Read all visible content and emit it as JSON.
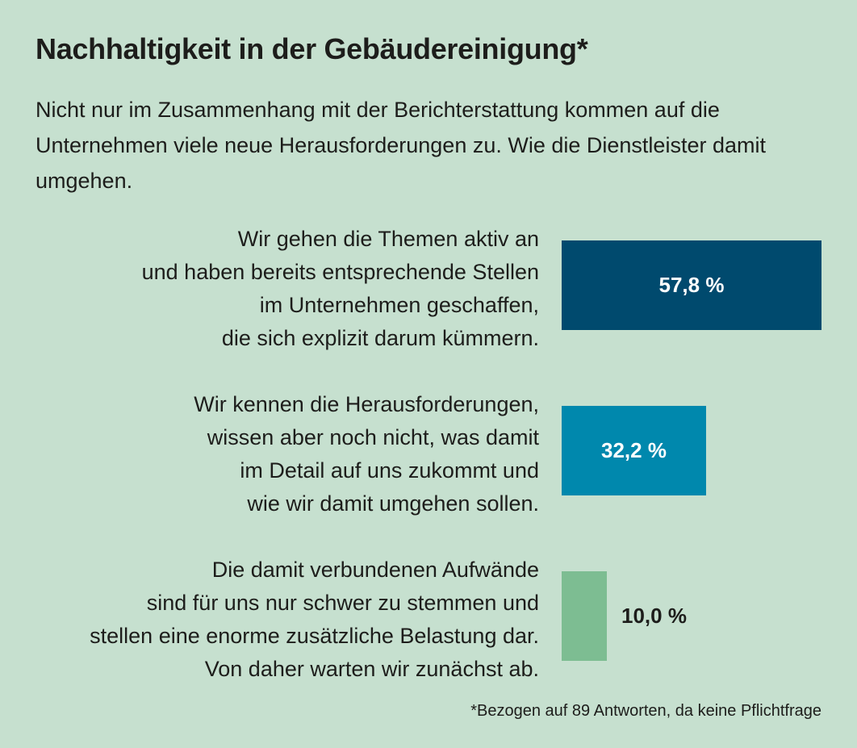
{
  "header": {
    "title": "Nachhaltigkeit in der Gebäudereinigung*",
    "intro": "Nicht nur im Zusammenhang mit der Berichterstattung kommen auf die Unternehmen viele neue Herausforderungen zu. Wie die Dienstleister damit umgehen."
  },
  "chart_data": {
    "type": "bar",
    "orientation": "horizontal",
    "title": "Nachhaltigkeit in der Gebäudereinigung*",
    "categories": [
      "Wir gehen die Themen aktiv an und haben bereits entsprechende Stellen im Unternehmen geschaffen, die sich explizit darum kümmern.",
      "Wir kennen die Herausforderungen, wissen aber noch nicht, was damit im Detail auf uns zukommt und wie wir damit umgehen sollen.",
      "Die damit verbundenen Aufwände sind für uns nur schwer zu stemmen und stellen eine enorme zusätzliche Belastung dar. Von daher warten wir zunächst ab."
    ],
    "label_lines": [
      [
        "Wir gehen die Themen aktiv an",
        "und haben bereits entsprechende Stellen",
        "im Unternehmen geschaffen,",
        "die sich explizit darum kümmern."
      ],
      [
        "Wir kennen die Herausforderungen,",
        "wissen aber noch nicht, was damit",
        "im Detail auf uns zukommt und",
        "wie wir damit umgehen sollen."
      ],
      [
        "Die damit verbundenen Aufwände",
        "sind für uns nur schwer zu stemmen und",
        "stellen eine enorme zusätzliche Belastung dar.",
        "Von daher warten wir zunächst ab."
      ]
    ],
    "values": [
      57.8,
      32.2,
      10.0
    ],
    "value_labels": [
      "57,8 %",
      "32,2 %",
      "10,0 %"
    ],
    "colors": [
      "#004a6e",
      "#0088ad",
      "#7dbd92"
    ],
    "value_text_colors": [
      "#ffffff",
      "#ffffff",
      "#1d1d1b"
    ],
    "xlim": [
      0,
      57.8
    ],
    "xlabel": "",
    "ylabel": ""
  },
  "footnote": "*Bezogen auf 89 Antworten, da keine Pflichtfrage"
}
